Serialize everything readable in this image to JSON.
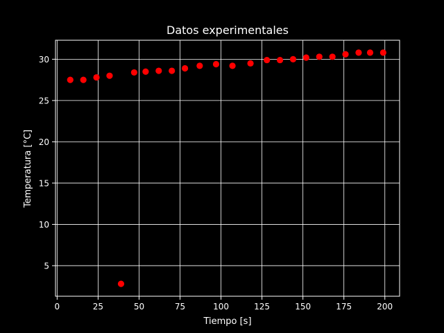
{
  "chart_data": {
    "type": "scatter",
    "title": "Datos experimentales",
    "xlabel": "Tiempo [s]",
    "ylabel": "Temperatura [°C]",
    "xlim": [
      -1,
      209
    ],
    "ylim": [
      1.3,
      32.3
    ],
    "xticks": [
      0,
      25,
      50,
      75,
      100,
      125,
      150,
      175,
      200
    ],
    "yticks": [
      5,
      10,
      15,
      20,
      25,
      30
    ],
    "grid": true,
    "marker_color": "#ff0000",
    "background": "#000000",
    "foreground": "#ffffff",
    "points": [
      {
        "x": 8,
        "y": 27.5
      },
      {
        "x": 16,
        "y": 27.5
      },
      {
        "x": 24,
        "y": 27.8
      },
      {
        "x": 32,
        "y": 28.0
      },
      {
        "x": 39,
        "y": 2.8
      },
      {
        "x": 47,
        "y": 28.4
      },
      {
        "x": 54,
        "y": 28.5
      },
      {
        "x": 62,
        "y": 28.6
      },
      {
        "x": 70,
        "y": 28.6
      },
      {
        "x": 78,
        "y": 28.9
      },
      {
        "x": 87,
        "y": 29.2
      },
      {
        "x": 97,
        "y": 29.4
      },
      {
        "x": 107,
        "y": 29.2
      },
      {
        "x": 118,
        "y": 29.5
      },
      {
        "x": 128,
        "y": 29.9
      },
      {
        "x": 136,
        "y": 29.9
      },
      {
        "x": 144,
        "y": 30.0
      },
      {
        "x": 152,
        "y": 30.2
      },
      {
        "x": 160,
        "y": 30.3
      },
      {
        "x": 168,
        "y": 30.3
      },
      {
        "x": 176,
        "y": 30.6
      },
      {
        "x": 184,
        "y": 30.8
      },
      {
        "x": 191,
        "y": 30.8
      },
      {
        "x": 199,
        "y": 30.8
      }
    ]
  }
}
